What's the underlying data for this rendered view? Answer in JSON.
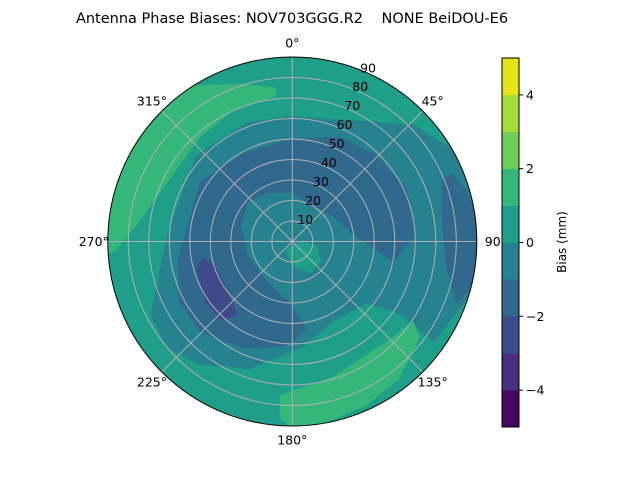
{
  "chart_data": {
    "type": "contour-polar",
    "title": "Antenna Phase Biases: NOV703GGG.R2    NONE BeiDOU-E6",
    "angular_axis": {
      "zero_location": "top",
      "direction": "clockwise",
      "tick_labels": [
        "0°",
        "45°",
        "90",
        "135°",
        "180°",
        "225°",
        "270°",
        "315°"
      ],
      "tick_values": [
        0,
        45,
        90,
        135,
        180,
        225,
        270,
        315
      ]
    },
    "radial_axis": {
      "range": [
        0,
        90
      ],
      "ticks": [
        10,
        20,
        30,
        40,
        50,
        60,
        70,
        80,
        90
      ],
      "tick_labels": [
        "10",
        "20",
        "30",
        "40",
        "50",
        "60",
        "70",
        "80",
        "90"
      ],
      "label_angle": 22.5
    },
    "grid": true,
    "colorbar": {
      "label": "Bias (mm)",
      "range": [
        -5,
        5
      ],
      "levels": [
        -5,
        -4,
        -3,
        -2,
        -1,
        0,
        1,
        2,
        3,
        4,
        5
      ],
      "colors": [
        "#46085c",
        "#472f7d",
        "#3e4a89",
        "#31688e",
        "#26828e",
        "#1f9e89",
        "#35b779",
        "#6ece58",
        "#a5db36",
        "#e5e419"
      ],
      "ticks": [
        -4,
        -2,
        0,
        2,
        4
      ],
      "tick_labels": [
        "−4",
        "−2",
        "0",
        "2",
        "4"
      ]
    },
    "background_level": [
      0,
      1
    ],
    "regions": [
      {
        "level": [
          -1,
          0
        ],
        "points_xy": [
          [
            -69,
            -36
          ],
          [
            -61,
            3
          ],
          [
            -47,
            42
          ],
          [
            -22,
            58
          ],
          [
            0,
            61
          ],
          [
            30,
            59
          ],
          [
            59,
            57
          ],
          [
            78,
            45
          ],
          [
            89,
            21
          ],
          [
            89,
            -23
          ],
          [
            69,
            -49
          ],
          [
            52,
            -35
          ],
          [
            36,
            -30
          ],
          [
            20,
            -39
          ],
          [
            4,
            -52
          ],
          [
            -21,
            -62
          ],
          [
            -45,
            -60
          ],
          [
            -61,
            -52
          ]
        ]
      },
      {
        "level": [
          -2,
          -1
        ],
        "points_xy": [
          [
            -56,
            -10
          ],
          [
            -45,
            29
          ],
          [
            -24,
            43
          ],
          [
            0,
            50
          ],
          [
            23,
            51
          ],
          [
            41,
            42
          ],
          [
            56,
            25
          ],
          [
            60,
            3
          ],
          [
            49,
            -10
          ],
          [
            41,
            -4
          ],
          [
            30,
            3
          ],
          [
            20,
            12
          ],
          [
            10,
            17
          ],
          [
            0,
            24
          ],
          [
            -12,
            24
          ],
          [
            -22,
            19
          ],
          [
            -25,
            8
          ],
          [
            -22,
            -7
          ],
          [
            -12,
            -20
          ],
          [
            0,
            -31
          ],
          [
            7,
            -43
          ],
          [
            -3,
            -51
          ],
          [
            -24,
            -52
          ],
          [
            -45,
            -44
          ],
          [
            -55,
            -30
          ]
        ]
      },
      {
        "level": [
          -2,
          -1
        ],
        "points_xy": [
          [
            73,
            30
          ],
          [
            78,
            33
          ],
          [
            85,
            25
          ],
          [
            90,
            12
          ],
          [
            90,
            -20
          ],
          [
            80,
            -30
          ],
          [
            75,
            -12
          ],
          [
            73,
            12
          ]
        ]
      },
      {
        "level": [
          -3,
          -2
        ],
        "points_xy": [
          [
            -47,
            -13
          ],
          [
            -43,
            -8
          ],
          [
            -37,
            -13
          ],
          [
            -29,
            -30
          ],
          [
            -27,
            -36
          ],
          [
            -35,
            -38
          ],
          [
            -42,
            -30
          ]
        ]
      },
      {
        "level": [
          0,
          1
        ],
        "points_xy": [
          [
            -3,
            -4
          ],
          [
            4,
            0
          ],
          [
            12,
            -2
          ],
          [
            14,
            -10
          ],
          [
            9,
            -15
          ],
          [
            0,
            -12
          ]
        ]
      },
      {
        "level": [
          1,
          2
        ],
        "points_xy": [
          [
            -69,
            69
          ],
          [
            -48,
            76
          ],
          [
            -25,
            77
          ],
          [
            -8,
            75
          ],
          [
            -8,
            71
          ],
          [
            -29,
            64
          ],
          [
            -45,
            51
          ],
          [
            -61,
            29
          ],
          [
            -76,
            8
          ],
          [
            -87,
            -5
          ],
          [
            -94,
            -7
          ],
          [
            -94,
            29
          ]
        ]
      },
      {
        "level": [
          1,
          2
        ],
        "points_xy": [
          [
            -6,
            -75
          ],
          [
            20,
            -66
          ],
          [
            46,
            -49
          ],
          [
            59,
            -39
          ],
          [
            62,
            -47
          ],
          [
            52,
            -67
          ],
          [
            36,
            -80
          ],
          [
            17,
            -88
          ],
          [
            0,
            -91
          ],
          [
            -6,
            -86
          ]
        ]
      }
    ]
  }
}
